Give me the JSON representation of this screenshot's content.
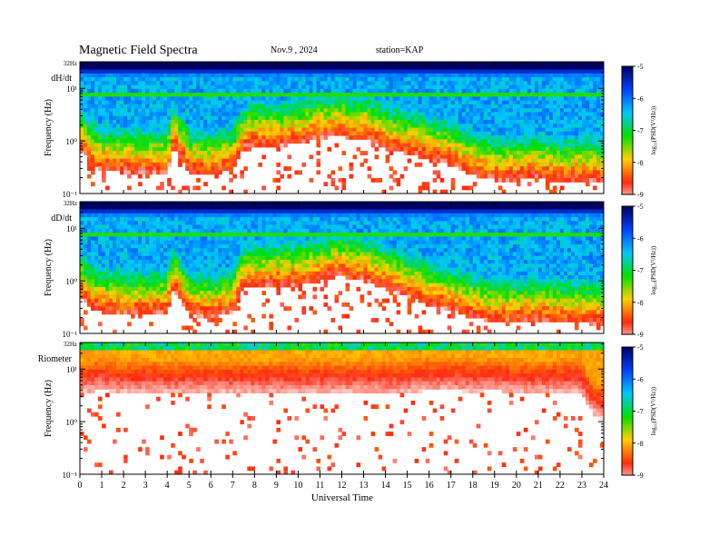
{
  "header": {
    "title": "Magnetic  Field  Spectra",
    "date": "Nov.9  , 2024",
    "station": "station=KAP"
  },
  "colors": {
    "colormap": [
      "#ffffff",
      "#ff2a10",
      "#ffd000",
      "#00e000",
      "#00c8ff",
      "#0040ff",
      "#000060"
    ],
    "frame": "#000000"
  },
  "chart_data": [
    {
      "type": "heatmap",
      "panel_label": "dH/dt",
      "xlabel": "",
      "ylabel": "Frequency  (Hz)",
      "top_label": "32Hz",
      "y_scale": "log",
      "y_ticks": [
        "10⁻¹",
        "10⁰",
        "10¹"
      ],
      "ylim": [
        0.1,
        32
      ],
      "xlim": [
        0,
        24
      ],
      "colorbar": {
        "label": "log₁₀(PSD(V²/Hz))",
        "range": [
          -9,
          -5
        ],
        "ticks": [
          "-5",
          "-6",
          "-7",
          "-8",
          "-9"
        ]
      },
      "lower_edge_log10_freq": {
        "hours": [
          0,
          0.5,
          1,
          2,
          3,
          4,
          4.3,
          5,
          6,
          7,
          7.5,
          8,
          9,
          10,
          11,
          12,
          12.5,
          13,
          14,
          15,
          16,
          17,
          18,
          19,
          20,
          21,
          22,
          23,
          24
        ],
        "values": [
          0.0,
          -0.3,
          -0.4,
          -0.45,
          -0.45,
          -0.45,
          0.05,
          -0.45,
          -0.5,
          -0.4,
          0.0,
          0.05,
          0.05,
          0.1,
          0.2,
          0.25,
          0.15,
          0.2,
          0.0,
          -0.1,
          -0.2,
          -0.3,
          -0.5,
          -0.6,
          -0.6,
          -0.55,
          -0.65,
          -0.6,
          -0.65
        ]
      }
    },
    {
      "type": "heatmap",
      "panel_label": "dD/dt",
      "xlabel": "",
      "ylabel": "Frequency  (Hz)",
      "top_label": "32Hz",
      "y_scale": "log",
      "y_ticks": [
        "10⁻¹",
        "10⁰",
        "10¹"
      ],
      "ylim": [
        0.1,
        32
      ],
      "xlim": [
        0,
        24
      ],
      "colorbar": {
        "label": "log₁₀(PSD(V²/Hz))",
        "range": [
          -9,
          -5
        ],
        "ticks": [
          "-5",
          "-6",
          "-7",
          "-8",
          "-9"
        ]
      },
      "lower_edge_log10_freq": {
        "hours": [
          0,
          0.5,
          1,
          2,
          3,
          4,
          4.3,
          5,
          6,
          7,
          7.5,
          8,
          9,
          10,
          11,
          12,
          12.5,
          13,
          14,
          15,
          16,
          17,
          18,
          19,
          20,
          21,
          22,
          23,
          24
        ],
        "values": [
          -0.15,
          -0.35,
          -0.45,
          -0.5,
          -0.5,
          -0.45,
          0.0,
          -0.5,
          -0.55,
          -0.45,
          0.0,
          0.0,
          0.05,
          0.05,
          0.15,
          0.25,
          0.15,
          0.15,
          0.0,
          -0.15,
          -0.3,
          -0.4,
          -0.55,
          -0.65,
          -0.65,
          -0.6,
          -0.65,
          -0.65,
          -0.7
        ]
      }
    },
    {
      "type": "heatmap",
      "panel_label": "Riometer",
      "xlabel": "Universal  Time",
      "ylabel": "Frequency  (Hz)",
      "top_label": "32Hz",
      "y_scale": "log",
      "y_ticks": [
        "10⁻¹",
        "10⁰",
        "10¹"
      ],
      "x_ticks": [
        "0",
        "1",
        "2",
        "3",
        "4",
        "5",
        "6",
        "7",
        "8",
        "9",
        "10",
        "11",
        "12",
        "13",
        "14",
        "15",
        "16",
        "17",
        "18",
        "19",
        "20",
        "21",
        "22",
        "23",
        "24"
      ],
      "ylim": [
        0.1,
        32
      ],
      "xlim": [
        0,
        24
      ],
      "colorbar": {
        "label": "log₁₀(PSD(V²/Hz))",
        "range": [
          -9,
          -5
        ],
        "ticks": [
          "-5",
          "-6",
          "-7",
          "-8",
          "-9"
        ]
      },
      "lower_edge_log10_freq": {
        "hours": [
          0,
          1,
          2,
          4,
          6,
          8,
          10,
          12,
          14,
          15,
          16,
          17,
          18,
          19,
          20,
          21,
          22,
          23,
          23.5,
          24
        ],
        "values": [
          0.6,
          0.65,
          0.6,
          0.6,
          0.6,
          0.6,
          0.6,
          0.6,
          0.6,
          0.6,
          0.65,
          0.65,
          0.62,
          0.65,
          0.6,
          0.6,
          0.62,
          0.6,
          0.2,
          0.1
        ]
      }
    }
  ]
}
